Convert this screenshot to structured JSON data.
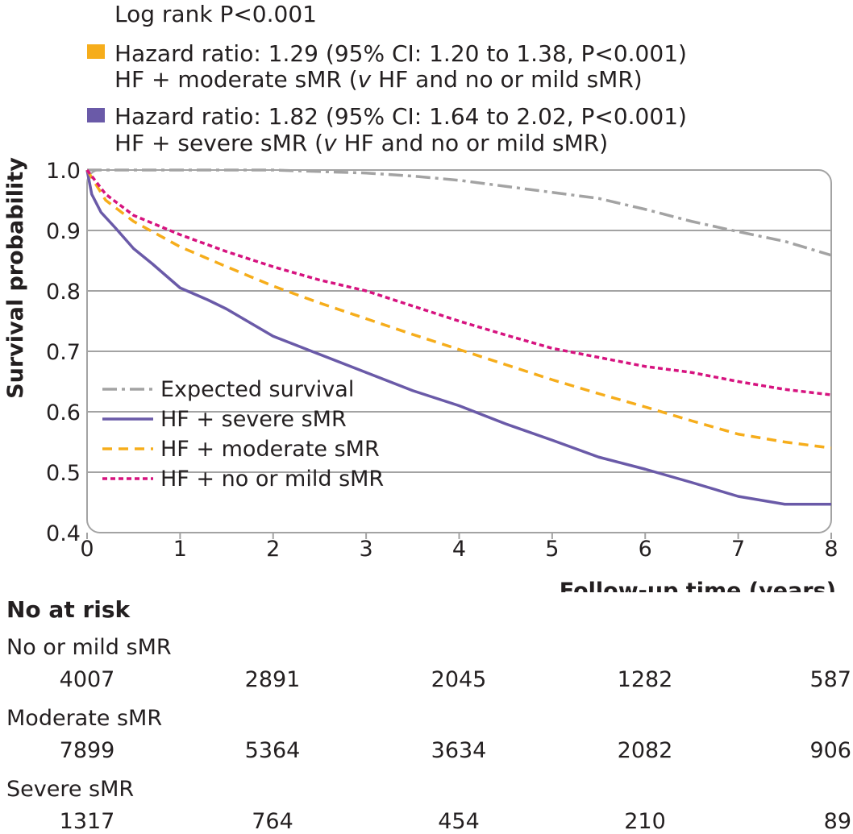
{
  "chart_data": {
    "type": "line",
    "kind": "kaplan-meier survival curve",
    "annotations": {
      "log_rank": "Log rank P<0.001",
      "hr_moderate_line1": "Hazard ratio: 1.29 (95% CI: 1.20 to 1.38, P<0.001)",
      "hr_moderate_line2_a": "HF + moderate sMR (",
      "hr_moderate_line2_v": "v",
      "hr_moderate_line2_b": " HF and no or mild sMR)",
      "hr_severe_line1": "Hazard ratio: 1.82 (95% CI: 1.64 to 2.02, P<0.001)",
      "hr_severe_line2_a": "HF + severe sMR (",
      "hr_severe_line2_v": "v",
      "hr_severe_line2_b": " HF and no or mild sMR)",
      "moderate_color": "#f6ad1b",
      "severe_color": "#6a5aa8"
    },
    "xlabel": "Follow-up time (years)",
    "ylabel": "Survival probability",
    "xlim": [
      0,
      8
    ],
    "ylim": [
      0.4,
      1.0
    ],
    "x_ticks": [
      "0",
      "1",
      "2",
      "3",
      "4",
      "5",
      "6",
      "7",
      "8"
    ],
    "y_ticks": [
      "0.4",
      "0.5",
      "0.6",
      "0.7",
      "0.8",
      "0.9",
      "1.0"
    ],
    "grid": "horizontal",
    "legend_position": "bottom-left inside plot",
    "series": [
      {
        "name": "Expected survival",
        "color": "#a3a3a3",
        "style": "dash-dot",
        "points": [
          [
            0,
            1.0
          ],
          [
            1,
            1.0
          ],
          [
            2,
            1.0
          ],
          [
            3,
            0.995
          ],
          [
            3.5,
            0.99
          ],
          [
            4,
            0.983
          ],
          [
            4.5,
            0.973
          ],
          [
            5,
            0.963
          ],
          [
            5.5,
            0.953
          ],
          [
            6,
            0.935
          ],
          [
            6.5,
            0.915
          ],
          [
            7,
            0.898
          ],
          [
            7.5,
            0.882
          ],
          [
            8,
            0.859
          ]
        ]
      },
      {
        "name": "HF + severe sMR",
        "color": "#6a5aa8",
        "style": "solid",
        "points": [
          [
            0,
            1.0
          ],
          [
            0.05,
            0.96
          ],
          [
            0.15,
            0.93
          ],
          [
            0.3,
            0.905
          ],
          [
            0.5,
            0.87
          ],
          [
            0.7,
            0.845
          ],
          [
            1,
            0.805
          ],
          [
            1.3,
            0.785
          ],
          [
            1.5,
            0.77
          ],
          [
            2,
            0.725
          ],
          [
            2.5,
            0.695
          ],
          [
            3,
            0.665
          ],
          [
            3.5,
            0.635
          ],
          [
            4,
            0.61
          ],
          [
            4.5,
            0.58
          ],
          [
            5,
            0.553
          ],
          [
            5.5,
            0.525
          ],
          [
            6,
            0.505
          ],
          [
            6.5,
            0.483
          ],
          [
            7,
            0.46
          ],
          [
            7.5,
            0.447
          ],
          [
            8,
            0.447
          ]
        ]
      },
      {
        "name": "HF + moderate sMR",
        "color": "#f6ad1b",
        "style": "dashed",
        "points": [
          [
            0,
            1.0
          ],
          [
            0.2,
            0.95
          ],
          [
            0.5,
            0.915
          ],
          [
            1,
            0.873
          ],
          [
            1.5,
            0.84
          ],
          [
            2,
            0.808
          ],
          [
            2.5,
            0.78
          ],
          [
            3,
            0.754
          ],
          [
            3.5,
            0.728
          ],
          [
            4,
            0.703
          ],
          [
            4.5,
            0.678
          ],
          [
            5,
            0.653
          ],
          [
            5.5,
            0.63
          ],
          [
            6,
            0.608
          ],
          [
            6.5,
            0.585
          ],
          [
            7,
            0.563
          ],
          [
            7.5,
            0.55
          ],
          [
            8,
            0.54
          ]
        ]
      },
      {
        "name": "HF + no or mild sMR",
        "color": "#d6137f",
        "style": "dotted",
        "points": [
          [
            0,
            1.0
          ],
          [
            0.2,
            0.96
          ],
          [
            0.5,
            0.925
          ],
          [
            1,
            0.893
          ],
          [
            1.5,
            0.865
          ],
          [
            2,
            0.84
          ],
          [
            2.5,
            0.818
          ],
          [
            3,
            0.8
          ],
          [
            3.5,
            0.775
          ],
          [
            4,
            0.75
          ],
          [
            4.5,
            0.727
          ],
          [
            5,
            0.705
          ],
          [
            5.5,
            0.69
          ],
          [
            6,
            0.675
          ],
          [
            6.5,
            0.665
          ],
          [
            7,
            0.65
          ],
          [
            7.5,
            0.637
          ],
          [
            8,
            0.628
          ]
        ]
      }
    ],
    "at_risk": {
      "title": "No at risk",
      "times": [
        0,
        2,
        4,
        6,
        8
      ],
      "groups": [
        {
          "label": "No or mild sMR",
          "counts": [
            "4007",
            "2891",
            "2045",
            "1282",
            "587"
          ]
        },
        {
          "label": "Moderate sMR",
          "counts": [
            "7899",
            "5364",
            "3634",
            "2082",
            "906"
          ]
        },
        {
          "label": "Severe sMR",
          "counts": [
            "1317",
            "764",
            "454",
            "210",
            "89"
          ]
        }
      ]
    }
  }
}
